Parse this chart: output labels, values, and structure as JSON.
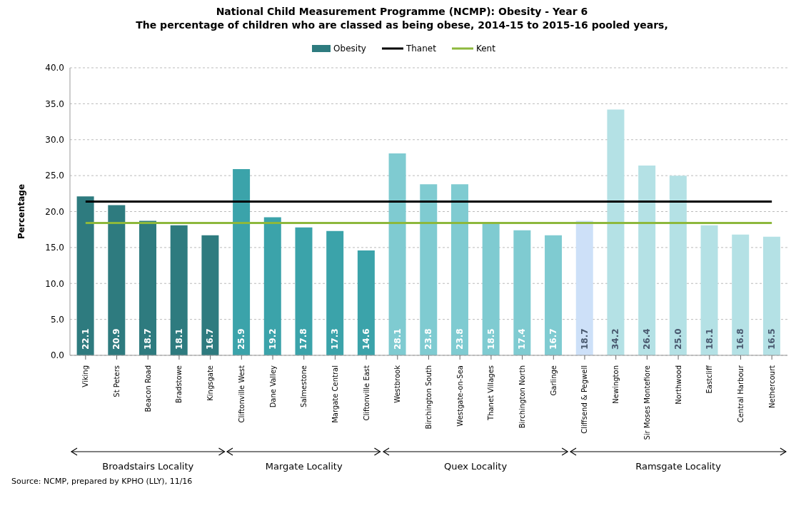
{
  "chart_data": {
    "type": "bar",
    "title": "National Child Measurement Programme (NCMP): Obesity - Year 6",
    "subtitle": "The percentage of children who are classed as being obese, 2014-15 to 2015-16 pooled years,",
    "ylabel": "Percentage",
    "categories": [
      "Viking",
      "St Peters",
      "Beacon Road",
      "Bradstowe",
      "Kingsgate",
      "Cliftonville West",
      "Dane Valley",
      "Salmestone",
      "Margate Central",
      "Cliftonville East",
      "Westbrook",
      "Birchington South",
      "Westgate-on-Sea",
      "Thanet Villages",
      "Birchington North",
      "Garlinge",
      "Cliffsend & Pegwell",
      "Newington",
      "Sir Moses Montefiore",
      "Northwood",
      "Eastcliff",
      "Central Harbour",
      "Nethercourt"
    ],
    "series": [
      {
        "name": "Obesity",
        "color": "#2e7b7f",
        "values": [
          22.1,
          20.9,
          18.7,
          18.1,
          16.7,
          25.9,
          19.2,
          17.8,
          17.3,
          14.6,
          28.1,
          23.8,
          23.8,
          18.5,
          17.4,
          16.7,
          18.7,
          34.2,
          26.4,
          25.0,
          18.1,
          16.8,
          16.5
        ],
        "value_labels": [
          "22.1",
          "20.9",
          "18.7",
          "18.1",
          "16.7",
          "25.9",
          "19.2",
          "17.8",
          "17.3",
          "14.6",
          "28.1",
          "23.8",
          "23.8",
          "18.5",
          "17.4",
          "16.7",
          "18.7",
          "34.2",
          "26.4",
          "25.0",
          "18.1",
          "16.8",
          "16.5"
        ],
        "colors": [
          "#2e7b7f",
          "#2e7b7f",
          "#2e7b7f",
          "#2e7b7f",
          "#2e7b7f",
          "#3ba3aa",
          "#3ba3aa",
          "#3ba3aa",
          "#3ba3aa",
          "#3ba3aa",
          "#7fcbd1",
          "#7fcbd1",
          "#7fcbd1",
          "#7fcbd1",
          "#7fcbd1",
          "#7fcbd1",
          "#cde0f8",
          "#b4e1e5",
          "#b4e1e5",
          "#b4e1e5",
          "#b4e1e5",
          "#b4e1e5",
          "#b4e1e5"
        ]
      },
      {
        "name": "Thanet",
        "type": "line",
        "color": "#000000",
        "values": [
          21.4,
          21.4,
          21.4,
          21.4,
          21.4,
          21.4,
          21.4,
          21.4,
          21.4,
          21.4,
          21.4,
          21.4,
          21.4,
          21.4,
          21.4,
          21.4,
          21.4,
          21.4,
          21.4,
          21.4,
          21.4,
          21.4,
          21.4
        ]
      },
      {
        "name": "Kent",
        "type": "line",
        "color": "#8db83c",
        "values": [
          18.4,
          18.4,
          18.4,
          18.4,
          18.4,
          18.4,
          18.4,
          18.4,
          18.4,
          18.4,
          18.4,
          18.4,
          18.4,
          18.4,
          18.4,
          18.4,
          18.4,
          18.4,
          18.4,
          18.4,
          18.4,
          18.4,
          18.4
        ]
      }
    ],
    "ylim": [
      0,
      40
    ],
    "yticks": [
      {
        "value": 0,
        "label": "0.0"
      },
      {
        "value": 5,
        "label": "5.0"
      },
      {
        "value": 10,
        "label": "10.0"
      },
      {
        "value": 15,
        "label": "15.0"
      },
      {
        "value": 20,
        "label": "20.0"
      },
      {
        "value": 25,
        "label": "25.0"
      },
      {
        "value": 30,
        "label": "30.0"
      },
      {
        "value": 35,
        "label": "35.0"
      },
      {
        "value": 40,
        "label": "40.0"
      }
    ],
    "grid": "y",
    "legend": "top",
    "marker": "none",
    "annotations": [
      "Broadstairs Locality",
      "Margate Locality",
      "Quex Locality",
      "Ramsgate Locality",
      "Source: NCMP, prepared by KPHO (LLY), 11/16"
    ]
  }
}
